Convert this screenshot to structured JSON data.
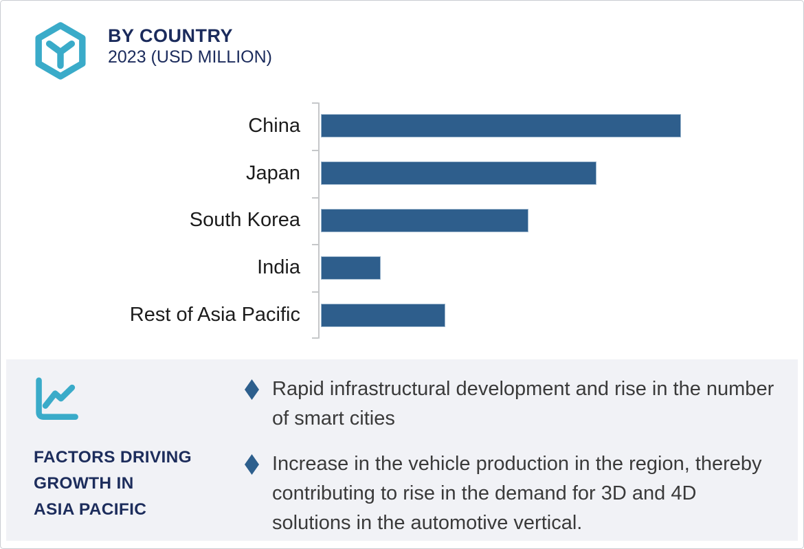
{
  "header": {
    "title": "BY COUNTRY",
    "subtitle": "2023 (USD MILLION)",
    "logo_icon": "hexagon-cube-icon",
    "accent_teal": "#3aabc9",
    "navy": "#1b2b5c"
  },
  "chart_data": {
    "type": "bar",
    "orientation": "horizontal",
    "title": "BY COUNTRY",
    "subtitle": "2023 (USD MILLION)",
    "unit": "USD Million",
    "categories": [
      "China",
      "Japan",
      "South Korea",
      "India",
      "Rest of Asia Pacific"
    ],
    "values_pct_of_max": [
      100,
      76.5,
      57.6,
      16.6,
      34.5
    ],
    "value_labels_shown": false,
    "bar_color": "#2e5e8c",
    "axis": {
      "x_tick_labels_shown": false,
      "gridlines": false,
      "y_axis_color": "#c5c7c9"
    },
    "legend": null
  },
  "factors_panel": {
    "icon": "line-chart-icon",
    "heading_lines": [
      "FACTORS DRIVING",
      "GROWTH IN",
      "ASIA PACIFIC"
    ],
    "bullet_marker": "diamond",
    "bullet_marker_color": "#2d5f8d",
    "panel_bg": "#f1f2f6",
    "bullets": [
      "Rapid infrastructural development and rise in the number of smart cities",
      "Increase in the vehicle production in the region, thereby contributing to rise in the demand for 3D and 4D solutions in the automotive vertical."
    ]
  }
}
